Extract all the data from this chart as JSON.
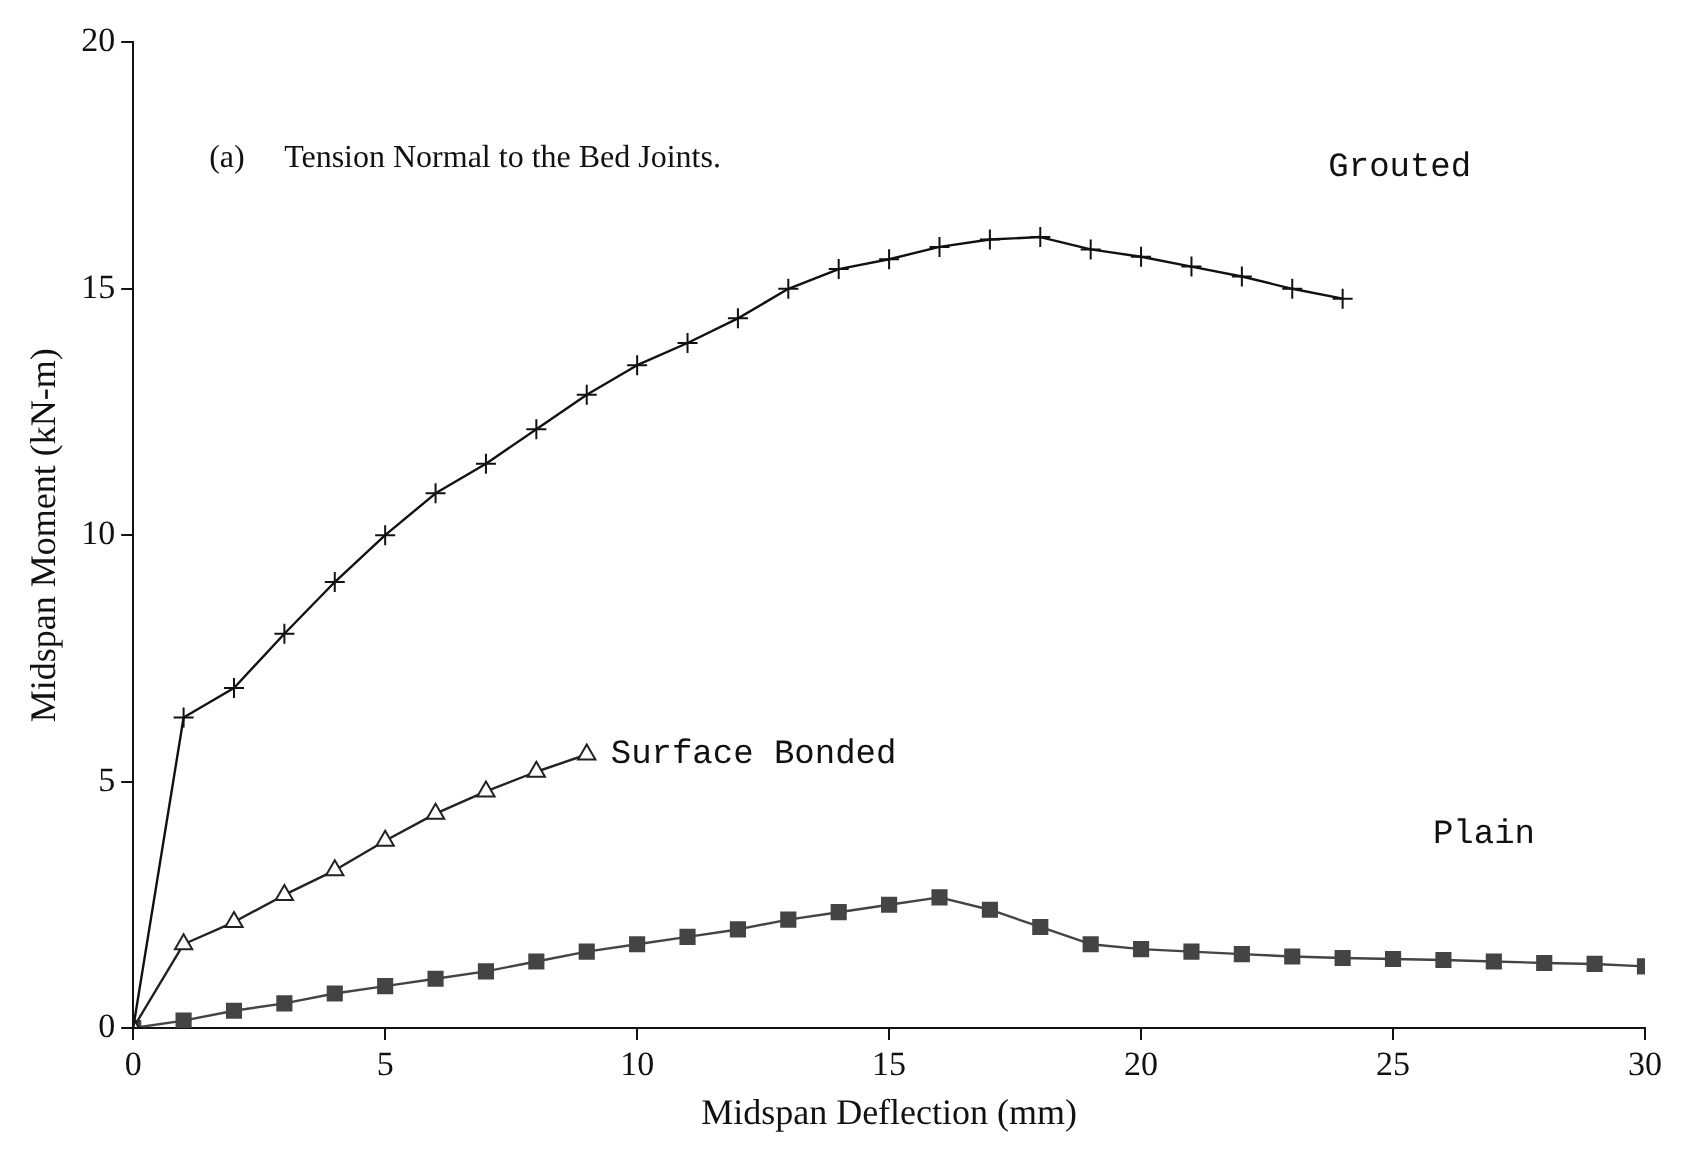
{
  "chart_data": {
    "type": "line",
    "xlabel": "Midspan Deflection (mm)",
    "ylabel": "Midspan Moment (kN-m)",
    "annotations": [
      "(a)     Tension Normal to the Bed Joints."
    ],
    "xlim": [
      0,
      30
    ],
    "xticks": [
      0,
      5,
      10,
      15,
      20,
      25,
      30
    ],
    "ylim": [
      0,
      20
    ],
    "yticks": [
      0,
      5,
      10,
      15,
      20
    ],
    "grid": false,
    "legend": false,
    "line_style": "solid",
    "series": [
      {
        "name": "Grouted",
        "color": "#111111",
        "marker": "cross",
        "x": [
          0,
          1,
          2,
          3,
          4,
          5,
          6,
          7,
          8,
          9,
          10,
          11,
          12,
          13,
          14,
          15,
          16,
          17,
          18,
          19,
          20,
          21,
          22,
          23,
          24
        ],
        "values": [
          0,
          6.3,
          6.9,
          8.0,
          9.05,
          10.0,
          10.85,
          11.45,
          12.15,
          12.85,
          13.45,
          13.9,
          14.4,
          15.0,
          15.4,
          15.6,
          15.85,
          16.0,
          16.05,
          15.8,
          15.65,
          15.45,
          15.25,
          15.0,
          14.8
        ]
      },
      {
        "name": "Surface Bonded",
        "color": "#222222",
        "marker": "triangle",
        "x": [
          0,
          1,
          2,
          3,
          4,
          5,
          6,
          7,
          8,
          9
        ],
        "values": [
          0,
          1.7,
          2.15,
          2.7,
          3.2,
          3.8,
          4.35,
          4.8,
          5.2,
          5.55
        ]
      },
      {
        "name": "Plain",
        "color": "#444444",
        "marker": "square",
        "x": [
          0,
          1,
          2,
          3,
          4,
          5,
          6,
          7,
          8,
          9,
          10,
          11,
          12,
          13,
          14,
          15,
          16,
          17,
          18,
          19,
          20,
          21,
          22,
          23,
          24,
          25,
          26,
          27,
          28,
          29,
          30
        ],
        "values": [
          0,
          0.15,
          0.35,
          0.5,
          0.7,
          0.85,
          1.0,
          1.15,
          1.35,
          1.55,
          1.7,
          1.85,
          2.0,
          2.2,
          2.35,
          2.5,
          2.65,
          2.4,
          2.05,
          1.7,
          1.6,
          1.55,
          1.5,
          1.45,
          1.42,
          1.4,
          1.38,
          1.35,
          1.32,
          1.3,
          1.25
        ]
      }
    ]
  }
}
